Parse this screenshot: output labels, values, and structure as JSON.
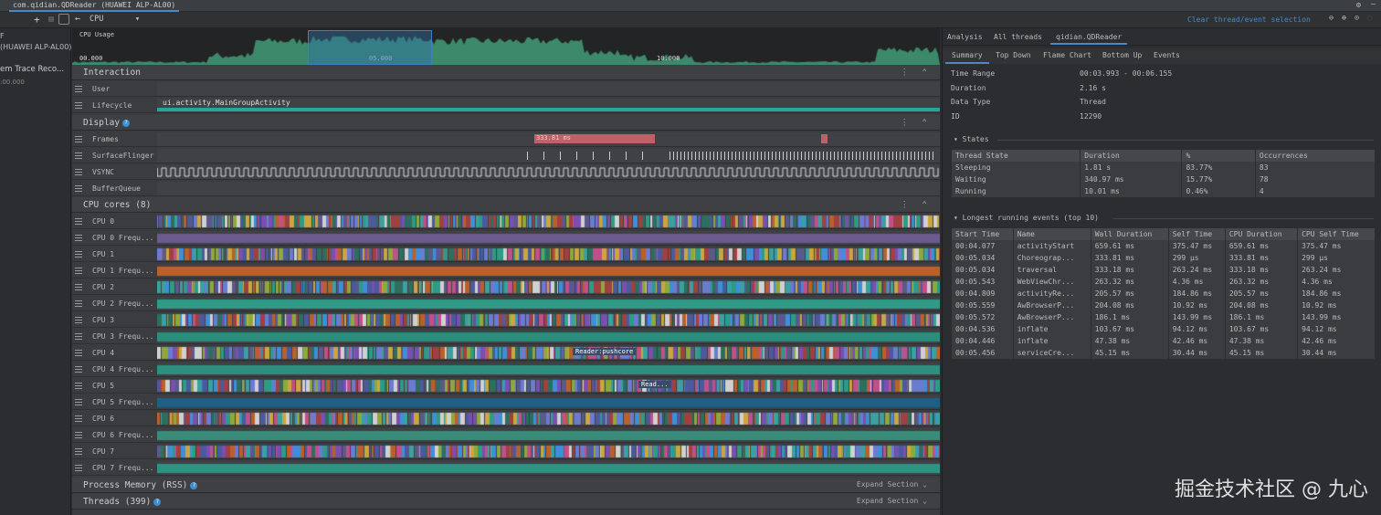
{
  "window": {
    "title": "com.qidian.QDReader (HUAWEI ALP-AL00)"
  },
  "toolbar": {
    "back_icon": "arrow-left",
    "view_select": "CPU",
    "add_icon": "plus",
    "stop_icon": "stop",
    "layout_icon": "panel-toggle"
  },
  "left_panel": {
    "line1": "F",
    "line2": "(HUAWEI ALP-AL00)",
    "line3": "em Trace Reco...",
    "line4": ":00.000"
  },
  "cpu_usage": {
    "label": "CPU Usage",
    "ticks": [
      "00.000",
      "05.000",
      "10.000"
    ],
    "selection": {
      "start": "00:03.993",
      "end": "00:06.155"
    }
  },
  "sections": {
    "interaction": {
      "title": "Interaction",
      "rows": [
        "User",
        "Lifecycle"
      ],
      "lifecycle_event": "ui.activity.MainGroupActivity"
    },
    "display": {
      "title": "Display",
      "rows": [
        "Frames",
        "SurfaceFlinger",
        "VSYNC",
        "BufferQueue"
      ],
      "frame_label": "333.81 ms"
    },
    "cpu": {
      "title": "CPU cores (8)",
      "rows": [
        "CPU 0",
        "CPU 0 Frequ...",
        "CPU 1",
        "CPU 1 Frequ...",
        "CPU 2",
        "CPU 2 Frequ...",
        "CPU 3",
        "CPU 3 Frequ...",
        "CPU 4",
        "CPU 4 Frequ...",
        "CPU 5",
        "CPU 5 Frequ...",
        "CPU 6",
        "CPU 6 Frequ...",
        "CPU 7",
        "CPU 7 Frequ..."
      ],
      "cpu4_label": "Reader:pushcore",
      "cpu5_label": "Read...",
      "freq_colors": [
        "#6b5a8e",
        "#b8612c",
        "#2f9a86",
        "#2d8c7c",
        "#2e8f80",
        "#1f5f86",
        "#3a8b7a",
        "#2f9384",
        "#b8612c"
      ]
    },
    "memory": {
      "title": "Process Memory (RSS)",
      "action": "Expand Section"
    },
    "threads": {
      "title": "Threads (399)",
      "action": "Expand Section"
    }
  },
  "right": {
    "clear_link": "Clear thread/event selection",
    "tabs": [
      "Analysis",
      "All threads",
      "qidian.QDReader"
    ],
    "subtabs": [
      "Summary",
      "Top Down",
      "Flame Chart",
      "Bottom Up",
      "Events"
    ],
    "info": [
      [
        "Time Range",
        "00:03.993 - 00:06.155"
      ],
      [
        "Duration",
        "2.16 s"
      ],
      [
        "Data Type",
        "Thread"
      ],
      [
        "ID",
        "12290"
      ]
    ],
    "states_title": "States",
    "states_headers": [
      "Thread State",
      "Duration",
      "%",
      "Occurrences"
    ],
    "states": [
      [
        "Sleeping",
        "1.81 s",
        "83.77%",
        "83"
      ],
      [
        "Waiting",
        "340.97 ms",
        "15.77%",
        "78"
      ],
      [
        "Running",
        "10.01 ms",
        "0.46%",
        "4"
      ]
    ],
    "events_title": "Longest running events (top 10)",
    "events_headers": [
      "Start Time",
      "Name",
      "Wall Duration",
      "Self Time",
      "CPU Duration",
      "CPU Self Time"
    ],
    "events": [
      [
        "00:04.077",
        "activityStart",
        "659.61 ms",
        "375.47 ms",
        "659.61 ms",
        "375.47 ms"
      ],
      [
        "00:05.034",
        "Choreograp...",
        "333.81 ms",
        "299 µs",
        "333.81 ms",
        "299 µs"
      ],
      [
        "00:05.034",
        "traversal",
        "333.18 ms",
        "263.24 ms",
        "333.18 ms",
        "263.24 ms"
      ],
      [
        "00:05.543",
        "WebViewChr...",
        "263.32 ms",
        "4.36 ms",
        "263.32 ms",
        "4.36 ms"
      ],
      [
        "00:04.809",
        "activityRe...",
        "205.57 ms",
        "184.86 ms",
        "205.57 ms",
        "184.86 ms"
      ],
      [
        "00:05.559",
        "AwBrowserP...",
        "204.08 ms",
        "10.92 ms",
        "204.08 ms",
        "10.92 ms"
      ],
      [
        "00:05.572",
        "AwBrowserP...",
        "186.1 ms",
        "143.99 ms",
        "186.1 ms",
        "143.99 ms"
      ],
      [
        "00:04.536",
        "inflate",
        "103.67 ms",
        "94.12 ms",
        "103.67 ms",
        "94.12 ms"
      ],
      [
        "00:04.446",
        "inflate",
        "47.38 ms",
        "42.46 ms",
        "47.38 ms",
        "42.46 ms"
      ],
      [
        "00:05.456",
        "serviceCre...",
        "45.15 ms",
        "30.44 ms",
        "45.15 ms",
        "30.44 ms"
      ]
    ]
  },
  "watermark": "掘金技术社区 @ 九心",
  "colors": {
    "accent": "#4a88c7",
    "lifecycle": "#22a89a",
    "frame": "#c0616a",
    "cpu_usage": "#3c8a6b",
    "selection": "#2f6ea8"
  }
}
